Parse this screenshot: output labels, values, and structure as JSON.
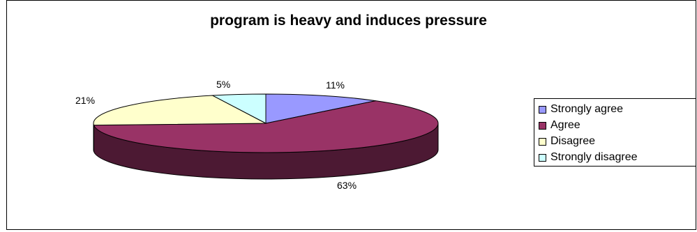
{
  "chart_data": {
    "type": "pie",
    "title": "program is heavy and induces pressure",
    "categories": [
      "Strongly agree",
      "Agree",
      "Disagree",
      "Strongly disagree"
    ],
    "values": [
      11,
      63,
      21,
      5
    ],
    "labels": [
      "11%",
      "63%",
      "21%",
      "5%"
    ],
    "colors": [
      "#9999FF",
      "#993366",
      "#FFFFCC",
      "#CCFFFF"
    ],
    "side_colors": [
      "#4C4C80",
      "#4C1933",
      "#808066",
      "#668080"
    ],
    "legend_position": "right",
    "three_d": true
  }
}
